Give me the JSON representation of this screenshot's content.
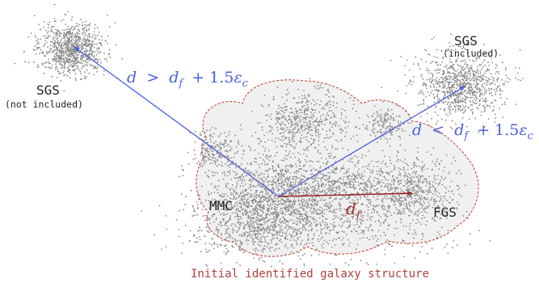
{
  "labels": {
    "sgs_left": "SGS",
    "sgs_left_note": "(not included)",
    "sgs_right": "SGS",
    "sgs_right_note": "(included)",
    "mmc": "MMC",
    "fgs": "FGS",
    "caption": "Initial identified galaxy structure"
  },
  "equations": {
    "far": {
      "d": "d",
      "op": ">",
      "df": "d",
      "df_sub": "f",
      "plus": "+ 1.5",
      "eps": "ε",
      "eps_sub": "c"
    },
    "near": {
      "d": "d",
      "op": "<",
      "df": "d",
      "df_sub": "f",
      "plus": "+ 1.5",
      "eps": "ε",
      "eps_sub": "c"
    },
    "df_label": {
      "d": "d",
      "sub": "f"
    }
  },
  "colors": {
    "blue_arrow": "#4a5fe0",
    "red_arrow": "#9e2a2a",
    "caption": "#b04040",
    "boundary": "#c0392b",
    "region_fill": "#f0f0f0",
    "points": "#8a8a8a"
  }
}
